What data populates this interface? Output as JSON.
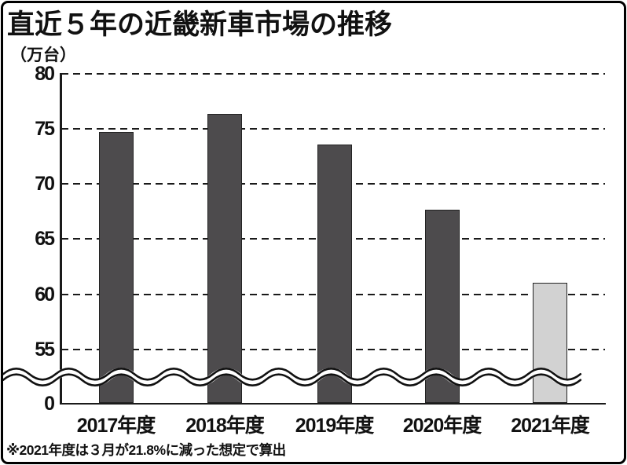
{
  "title": "直近５年の近畿新車市場の推移",
  "unit_label": "（万台）",
  "footnote": "※2021年度は３月が21.8%に減った想定で算出",
  "colors": {
    "bar_dark": "#4d4b4d",
    "bar_light": "#d2d2d2",
    "axis": "#1a1a1a",
    "background": "#ffffff"
  },
  "chart_data": {
    "type": "bar",
    "title": "直近５年の近畿新車市場の推移",
    "ylabel": "（万台）",
    "categories": [
      "2017年度",
      "2018年度",
      "2019年度",
      "2020年度",
      "2021年度"
    ],
    "values": [
      74.7,
      76.4,
      73.6,
      67.7,
      61.0
    ],
    "bar_colors": [
      "#4d4b4d",
      "#4d4b4d",
      "#4d4b4d",
      "#4d4b4d",
      "#d2d2d2"
    ],
    "yticks": [
      0,
      55,
      60,
      65,
      70,
      75,
      80
    ],
    "ylim": [
      0,
      80
    ],
    "grid": "dashed-horizontal",
    "legend": "none",
    "axis_break": {
      "between": [
        0,
        55
      ],
      "style": "double-wavy-line"
    }
  }
}
